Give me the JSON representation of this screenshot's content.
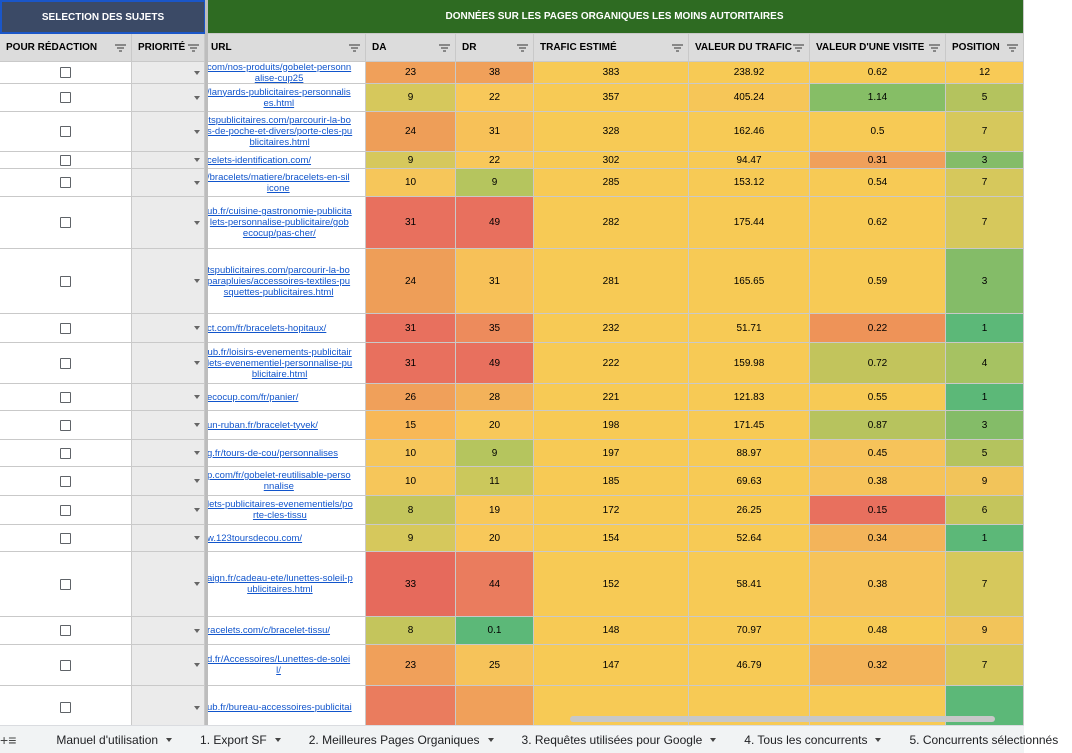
{
  "sheet": {
    "banners": {
      "selection": "SELECTION DES SUJETS",
      "data": "DONNÉES SUR LES PAGES ORGANIQUES LES MOINS AUTORITAIRES"
    },
    "headers": [
      "POUR RÉDACTION",
      "PRIORITÉ",
      "URL",
      "DA",
      "DR",
      "TRAFIC ESTIMÉ",
      "VALEUR DU TRAFIC",
      "VALEUR D'UNE VISITE",
      "POSITION"
    ],
    "rows": [
      {
        "url": "com/nos-produits/gobelet-personn\nalise-cup25",
        "da": "23",
        "dr": "38",
        "trafic": "383",
        "valeur": "238.92",
        "visite": "0.62",
        "position": "12"
      },
      {
        "url": "/lanyards-publicitaires-personnalis\nes.html",
        "da": "9",
        "dr": "22",
        "trafic": "357",
        "valeur": "405.24",
        "visite": "1.14",
        "position": "5"
      },
      {
        "url": "tspublicitaires.com/parcourir-la-bo\ns-de-poche-et-divers/porte-cles-pu\nblicitaires.html",
        "da": "24",
        "dr": "31",
        "trafic": "328",
        "valeur": "162.46",
        "visite": "0.5",
        "position": "7"
      },
      {
        "url": "celets-identification.com/",
        "da": "9",
        "dr": "22",
        "trafic": "302",
        "valeur": "94.47",
        "visite": "0.31",
        "position": "3"
      },
      {
        "url": "/bracelets/matiere/bracelets-en-sil\nicone",
        "da": "10",
        "dr": "9",
        "trafic": "285",
        "valeur": "153.12",
        "visite": "0.54",
        "position": "7"
      },
      {
        "url": "ub.fr/cuisine-gastronomie-publicita\nlets-personnalise-publicitaire/gob\necocup/pas-cher/",
        "da": "31",
        "dr": "49",
        "trafic": "282",
        "valeur": "175.44",
        "visite": "0.62",
        "position": "7"
      },
      {
        "url": "tspublicitaires.com/parcourir-la-bo\nparapluies/accessoires-textiles-pu\nsquettes-publicitaires.html",
        "da": "24",
        "dr": "31",
        "trafic": "281",
        "valeur": "165.65",
        "visite": "0.59",
        "position": "3"
      },
      {
        "url": "ct.com/fr/bracelets-hopitaux/",
        "da": "31",
        "dr": "35",
        "trafic": "232",
        "valeur": "51.71",
        "visite": "0.22",
        "position": "1"
      },
      {
        "url": "ub.fr/loisirs-evenements-publicitair\nlets-evenementiel-personnalise-pu\nblicitaire.html",
        "da": "31",
        "dr": "49",
        "trafic": "222",
        "valeur": "159.98",
        "visite": "0.72",
        "position": "4"
      },
      {
        "url": "ecocup.com/fr/panier/",
        "da": "26",
        "dr": "28",
        "trafic": "221",
        "valeur": "121.83",
        "visite": "0.55",
        "position": "1"
      },
      {
        "url": "un-ruban.fr/bracelet-tyvek/",
        "da": "15",
        "dr": "20",
        "trafic": "198",
        "valeur": "171.45",
        "visite": "0.87",
        "position": "3"
      },
      {
        "url": "g.fr/tours-de-cou/personnalises",
        "da": "10",
        "dr": "9",
        "trafic": "197",
        "valeur": "88.97",
        "visite": "0.45",
        "position": "5"
      },
      {
        "url": "p.com/fr/gobelet-reutilisable-perso\nnnalise",
        "da": "10",
        "dr": "11",
        "trafic": "185",
        "valeur": "69.63",
        "visite": "0.38",
        "position": "9"
      },
      {
        "url": "lets-publicitaires-evenementiels/po\nrte-cles-tissu",
        "da": "8",
        "dr": "19",
        "trafic": "172",
        "valeur": "26.25",
        "visite": "0.15",
        "position": "6"
      },
      {
        "url": "w.123toursdecou.com/",
        "da": "9",
        "dr": "20",
        "trafic": "154",
        "valeur": "52.64",
        "visite": "0.34",
        "position": "1"
      },
      {
        "url": "aign.fr/cadeau-ete/lunettes-soleil-p\nublicitaires.html",
        "da": "33",
        "dr": "44",
        "trafic": "152",
        "valeur": "58.41",
        "visite": "0.38",
        "position": "7"
      },
      {
        "url": "racelets.com/c/bracelet-tissu/",
        "da": "8",
        "dr": "0.1",
        "trafic": "148",
        "valeur": "70.97",
        "visite": "0.48",
        "position": "9"
      },
      {
        "url": "d.fr/Accessoires/Lunettes-de-solei\nl/",
        "da": "23",
        "dr": "25",
        "trafic": "147",
        "valeur": "46.79",
        "visite": "0.32",
        "position": "7"
      },
      {
        "url": "ub.fr/bureau-accessoires-publicitai",
        "da": "",
        "dr": "",
        "trafic": "",
        "valeur": "",
        "visite": "",
        "position": ""
      }
    ],
    "colors": {
      "da": [
        "#f0a05a",
        "#d6c85c",
        "#ee9e58",
        "#d6c85c",
        "#f6c65a",
        "#e8705e",
        "#ee9e58",
        "#e8705e",
        "#e8705e",
        "#f0a05a",
        "#f8b857",
        "#f6c65a",
        "#f6c65a",
        "#c4c55c",
        "#d6c85c",
        "#e66a5c",
        "#c4c55c",
        "#f0a05a",
        "#ea7c5e"
      ],
      "dr": [
        "#f0a05a",
        "#f8c85a",
        "#f7c158",
        "#f8c85a",
        "#b5c55e",
        "#e8705e",
        "#f7c158",
        "#ed8b5c",
        "#e8705e",
        "#f3b25a",
        "#f8c85a",
        "#b5c55e",
        "#cbc85c",
        "#f8c85a",
        "#f8c85a",
        "#ea7c5e",
        "#5cb878",
        "#f6c35a",
        "#f0a05a"
      ],
      "trafic": [
        "#f7ca55",
        "#f7ca55",
        "#f7ca55",
        "#f7ca55",
        "#f7ca55",
        "#f7ca55",
        "#f7ca55",
        "#f7ca55",
        "#f7ca55",
        "#f7ca55",
        "#f7ca55",
        "#f7ca55",
        "#f7ca55",
        "#f7ca55",
        "#f7ca55",
        "#f7ca55",
        "#f7ca55",
        "#f7ca55",
        "#f7ca55"
      ],
      "valeur": [
        "#f7ca55",
        "#f6c658",
        "#f7ca55",
        "#f7ca55",
        "#f7ca55",
        "#f7ca55",
        "#f7ca55",
        "#f7ca55",
        "#f7ca55",
        "#f7ca55",
        "#f7ca55",
        "#f7ca55",
        "#f7ca55",
        "#f7ca55",
        "#f7ca55",
        "#f7ca55",
        "#f7ca55",
        "#f7ca55",
        "#f7ca55"
      ],
      "visite": [
        "#f7ca55",
        "#86be66",
        "#f7ca55",
        "#f0a05a",
        "#f7ca55",
        "#f7ca55",
        "#f7ca55",
        "#ee9358",
        "#c2c45c",
        "#f7ca55",
        "#b7c35e",
        "#f6c35a",
        "#f6c35a",
        "#e8705e",
        "#f3b45a",
        "#f6c35a",
        "#f7ca55",
        "#f3b45a",
        "#f7ca55"
      ],
      "position": [
        "#f8ca56",
        "#b4c35e",
        "#d6c85c",
        "#84bc68",
        "#d6c85c",
        "#d6c85c",
        "#84bc68",
        "#5cb878",
        "#a6c262",
        "#5cb878",
        "#84bc68",
        "#b4c35e",
        "#f2c45a",
        "#c4c55c",
        "#5cb878",
        "#d6c85c",
        "#f2c45a",
        "#d6c85c",
        "#5cb878"
      ]
    }
  },
  "tabbar": {
    "add": "+",
    "menu": "≡",
    "tabs": [
      "Manuel d'utilisation",
      "1. Export SF",
      "2. Meilleures Pages Organiques",
      "3. Requêtes utilisées pour Google",
      "4. Tous les concurrents",
      "5. Concurrents sélectionnés"
    ]
  }
}
